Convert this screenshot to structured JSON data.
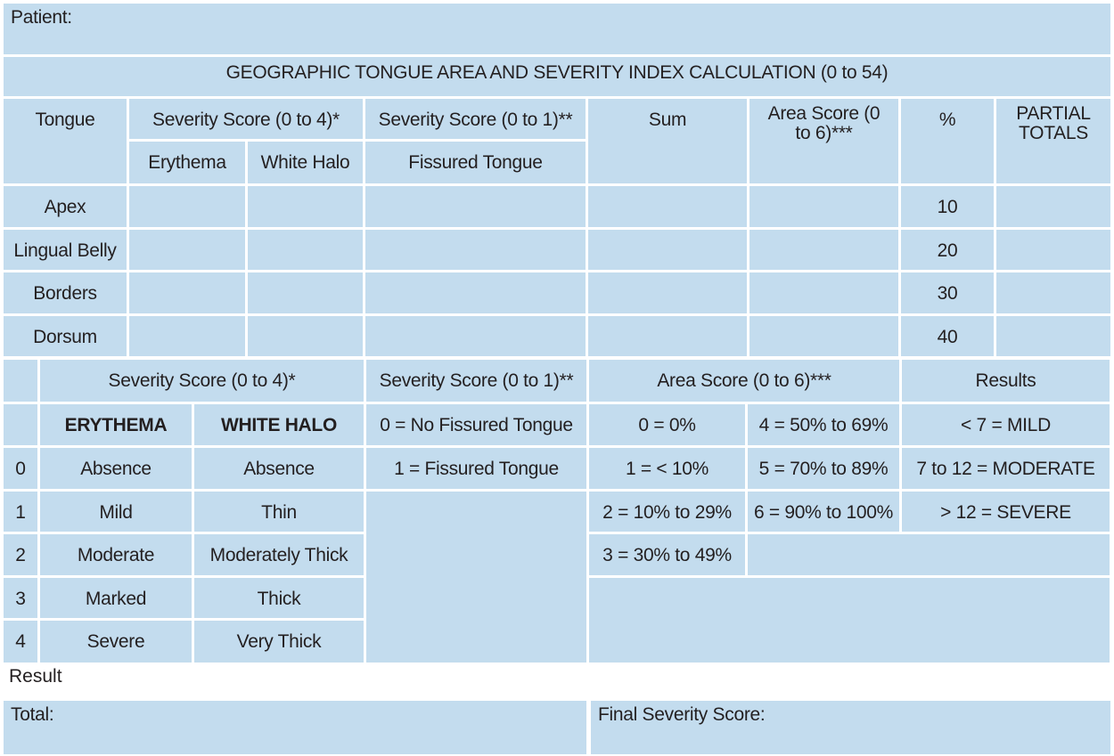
{
  "patient_label": "Patient:",
  "title": "GEOGRAPHIC TONGUE AREA AND SEVERITY INDEX CALCULATION (0 to 54)",
  "calc_table": {
    "headers": {
      "tongue": "Tongue",
      "severity_0_4": "Severity Score (0 to 4)*",
      "severity_0_1": "Severity Score (0 to 1)**",
      "sum": "Sum",
      "area_score": "Area Score (0 to 6)***",
      "percent": "%",
      "partial_totals": "PARTIAL TOTALS",
      "erythema": "Erythema",
      "white_halo": "White Halo",
      "fissured_tongue": "Fissured Tongue"
    },
    "rows": [
      {
        "region": "Apex",
        "percent": "10"
      },
      {
        "region": "Lingual Belly",
        "percent": "20"
      },
      {
        "region": "Borders",
        "percent": "30"
      },
      {
        "region": "Dorsum",
        "percent": "40"
      }
    ]
  },
  "legend": {
    "headers": {
      "severity_0_4": "Severity Score (0 to 4)*",
      "severity_0_1": "Severity Score (0 to 1)**",
      "area_score": "Area Score (0 to 6)***",
      "results": "Results",
      "erythema": "ERYTHEMA",
      "white_halo": "WHITE HALO"
    },
    "severity_rows": [
      {
        "score": "0",
        "erythema": "Absence",
        "white_halo": "Absence"
      },
      {
        "score": "1",
        "erythema": "Mild",
        "white_halo": "Thin"
      },
      {
        "score": "2",
        "erythema": "Moderate",
        "white_halo": "Moderately Thick"
      },
      {
        "score": "3",
        "erythema": "Marked",
        "white_halo": "Thick"
      },
      {
        "score": "4",
        "erythema": "Severe",
        "white_halo": "Very Thick"
      }
    ],
    "fissured": [
      "0 = No Fissured Tongue",
      "1 = Fissured Tongue"
    ],
    "area": [
      "0 = 0%",
      "1 = < 10%",
      "2 = 10% to 29%",
      "3 = 30% to 49%",
      "4 = 50% to 69%",
      "5 = 70% to 89%",
      "6 = 90% to 100%"
    ],
    "results": [
      "< 7 = MILD",
      "7 to 12 = MODERATE",
      "> 12 = SEVERE"
    ]
  },
  "result_label": "Result",
  "total_label": "Total:",
  "final_severity_label": "Final Severity Score:"
}
